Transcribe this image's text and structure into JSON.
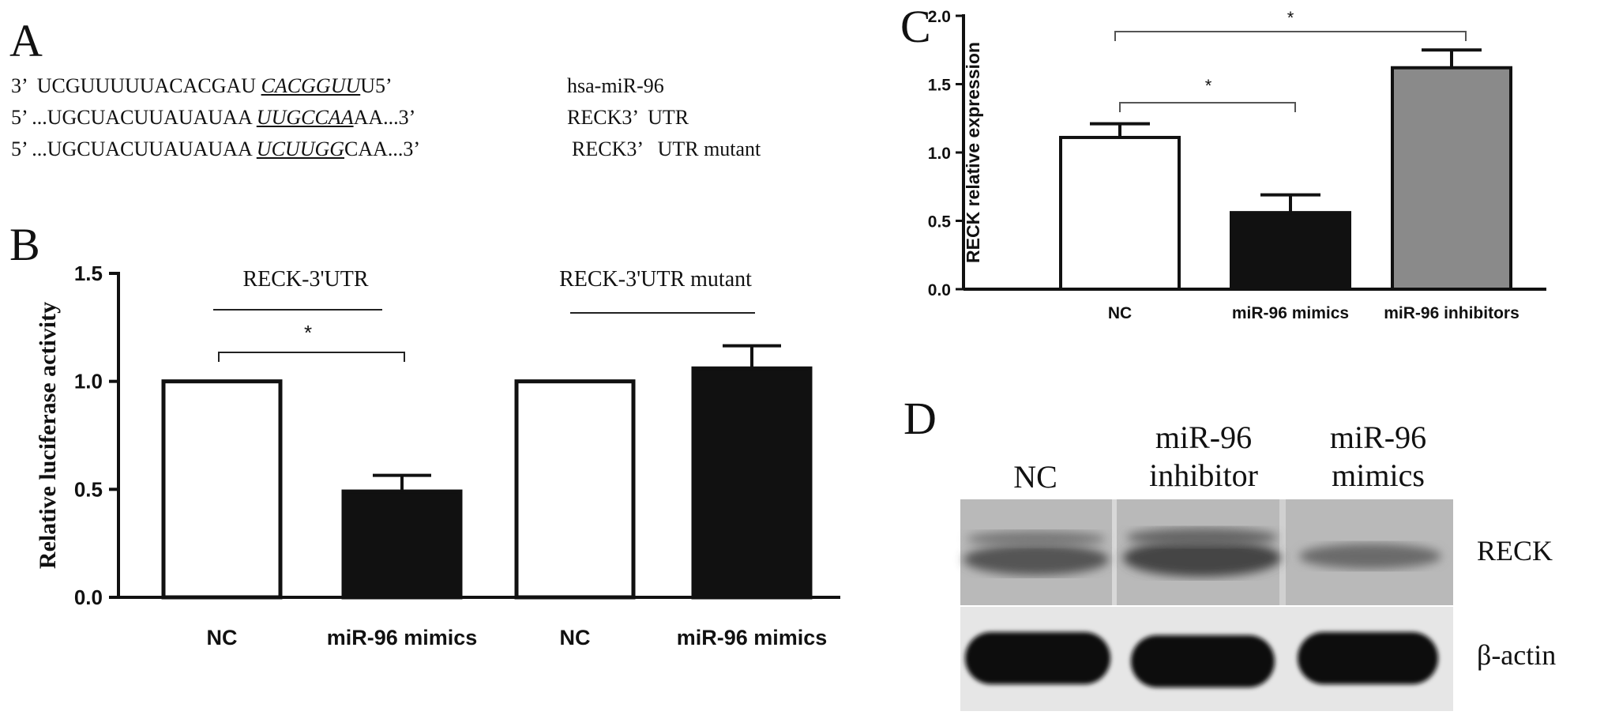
{
  "panels": {
    "A": "A",
    "B": "B",
    "C": "C",
    "D": "D"
  },
  "panel_a": {
    "rows": [
      {
        "prefix": "3’  UCGUUUUUACACGAU ",
        "site": "CACGGUU",
        "site_style": "italic-underline",
        "suffix": "U5’",
        "label": "hsa-miR-96"
      },
      {
        "prefix": "5’ ...UGCUACUUAUAUAA ",
        "site": "UUGCCAA",
        "site_style": "italic-underline",
        "suffix": "AA...3’",
        "label": "RECK3’  UTR"
      },
      {
        "prefix": "5’ ...UGCUACUUAUAUAA ",
        "site": "UCUUGG",
        "site_style": "italic-underline",
        "suffix": "CAA...3’",
        "label": "RECK3’   UTR mutant"
      }
    ]
  },
  "panel_b": {
    "group_labels": [
      "RECK-3'UTR",
      "RECK-3'UTR mutant"
    ],
    "significance_mark": "*"
  },
  "panel_c": {
    "significance_marks": [
      "*",
      "*"
    ]
  },
  "panel_d": {
    "lane_labels": [
      "NC",
      "miR-96\ninhibitor",
      "miR-96\nmimics"
    ],
    "row_labels": [
      "RECK",
      "β-actin"
    ]
  },
  "chart_data": [
    {
      "panel": "B",
      "type": "bar",
      "categories": [
        "NC",
        "miR-96 mimics",
        "NC",
        "miR-96 mimics"
      ],
      "values": [
        1.0,
        0.49,
        1.0,
        1.06
      ],
      "errors": [
        0,
        0.075,
        0,
        0.105
      ],
      "bar_colors": [
        "#ffffff",
        "#111111",
        "#ffffff",
        "#111111"
      ],
      "ylabel": "Relative luciferase activity",
      "ylim": [
        0,
        1.5
      ],
      "yticks": [
        "0.0",
        "0.5",
        "1.0",
        "1.5"
      ],
      "grid": false
    },
    {
      "panel": "C",
      "type": "bar",
      "categories": [
        "NC",
        "miR-96 mimics",
        "miR-96 inhibitors"
      ],
      "values": [
        1.11,
        0.56,
        1.62
      ],
      "errors": [
        0.1,
        0.13,
        0.13
      ],
      "bar_colors": [
        "#ffffff",
        "#111111",
        "#8a8a8a"
      ],
      "ylabel": "RECK relative expression",
      "ylim": [
        0,
        2.0
      ],
      "yticks": [
        "0.0",
        "0.5",
        "1.0",
        "1.5",
        "2.0"
      ],
      "grid": false
    }
  ]
}
